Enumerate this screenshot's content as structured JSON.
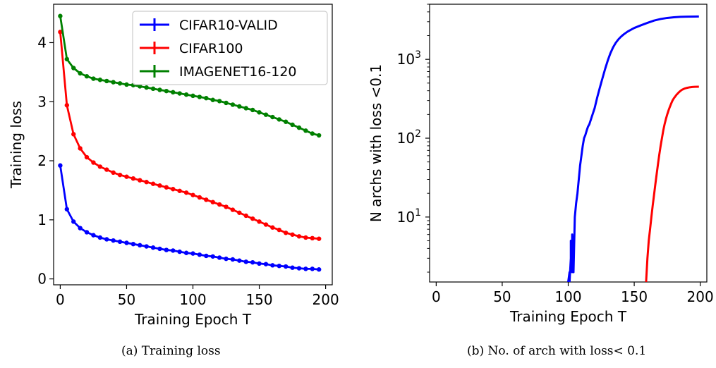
{
  "captions": {
    "a": "(a) Training loss",
    "b": "(b) No. of arch with loss< 0.1"
  },
  "chart_data": [
    {
      "type": "line",
      "title": "",
      "xlabel": "Training Epoch T",
      "ylabel": "Training loss",
      "xlim": [
        -5,
        205
      ],
      "ylim": [
        -0.1,
        4.65
      ],
      "xticks": [
        0,
        50,
        100,
        150,
        200
      ],
      "yticks": [
        0,
        1,
        2,
        3,
        4
      ],
      "grid": false,
      "legend_position": "top-right",
      "x": [
        0,
        5,
        10,
        15,
        20,
        25,
        30,
        35,
        40,
        45,
        50,
        55,
        60,
        65,
        70,
        75,
        80,
        85,
        90,
        95,
        100,
        105,
        110,
        115,
        120,
        125,
        130,
        135,
        140,
        145,
        150,
        155,
        160,
        165,
        170,
        175,
        180,
        185,
        190,
        195
      ],
      "series": [
        {
          "name": "CIFAR10-VALID",
          "color": "#0000ff",
          "values": [
            1.92,
            1.18,
            0.97,
            0.86,
            0.79,
            0.74,
            0.7,
            0.67,
            0.65,
            0.63,
            0.61,
            0.59,
            0.57,
            0.55,
            0.53,
            0.51,
            0.49,
            0.48,
            0.46,
            0.44,
            0.43,
            0.41,
            0.39,
            0.38,
            0.36,
            0.34,
            0.33,
            0.31,
            0.29,
            0.28,
            0.26,
            0.25,
            0.23,
            0.22,
            0.21,
            0.19,
            0.18,
            0.17,
            0.17,
            0.16
          ]
        },
        {
          "name": "CIFAR100",
          "color": "#ff0000",
          "values": [
            4.18,
            2.94,
            2.45,
            2.21,
            2.06,
            1.97,
            1.9,
            1.85,
            1.8,
            1.76,
            1.73,
            1.7,
            1.67,
            1.64,
            1.61,
            1.58,
            1.55,
            1.52,
            1.49,
            1.46,
            1.42,
            1.38,
            1.34,
            1.3,
            1.26,
            1.22,
            1.17,
            1.12,
            1.07,
            1.02,
            0.97,
            0.92,
            0.87,
            0.83,
            0.78,
            0.75,
            0.72,
            0.7,
            0.69,
            0.68
          ]
        },
        {
          "name": "IMAGENET16-120",
          "color": "#008000",
          "values": [
            4.45,
            3.72,
            3.57,
            3.48,
            3.43,
            3.39,
            3.37,
            3.35,
            3.33,
            3.31,
            3.29,
            3.28,
            3.26,
            3.24,
            3.22,
            3.2,
            3.18,
            3.16,
            3.14,
            3.12,
            3.1,
            3.08,
            3.06,
            3.03,
            3.01,
            2.98,
            2.95,
            2.92,
            2.89,
            2.86,
            2.82,
            2.78,
            2.74,
            2.7,
            2.66,
            2.61,
            2.56,
            2.51,
            2.46,
            2.43
          ]
        }
      ]
    },
    {
      "type": "line",
      "title": "",
      "xlabel": "Training Epoch T",
      "ylabel": "N archs with loss <0.1",
      "xlim": [
        -5,
        205
      ],
      "ylim": [
        1.5,
        5000
      ],
      "yscale": "log",
      "xticks": [
        0,
        50,
        100,
        150,
        200
      ],
      "yticks": [
        10,
        100,
        1000
      ],
      "ytick_labels": [
        {
          "base": "10",
          "exp": "1"
        },
        {
          "base": "10",
          "exp": "2"
        },
        {
          "base": "10",
          "exp": "3"
        }
      ],
      "grid": false,
      "series": [
        {
          "color": "#0000ff",
          "x": [
            100,
            101,
            101,
            102,
            102,
            103,
            103,
            104,
            105,
            106,
            107,
            108,
            109,
            110,
            111,
            112,
            113,
            114,
            115,
            116,
            118,
            120,
            122,
            124,
            126,
            128,
            130,
            132,
            134,
            136,
            138,
            140,
            142,
            145,
            148,
            150,
            155,
            160,
            165,
            170,
            175,
            180,
            185,
            190,
            195,
            199
          ],
          "values": [
            1.5,
            2,
            1.5,
            3,
            5,
            2,
            6,
            2,
            10,
            15,
            20,
            30,
            45,
            60,
            80,
            100,
            110,
            125,
            140,
            150,
            190,
            240,
            330,
            440,
            580,
            760,
            970,
            1200,
            1420,
            1620,
            1790,
            1940,
            2070,
            2250,
            2400,
            2500,
            2700,
            2900,
            3100,
            3250,
            3350,
            3420,
            3460,
            3480,
            3490,
            3500
          ]
        },
        {
          "color": "#ff0000",
          "x": [
            159,
            160,
            161,
            162,
            163,
            164,
            165,
            166,
            167,
            168,
            169,
            170,
            171,
            172,
            173,
            174,
            175,
            176,
            177,
            178,
            179,
            180,
            182,
            184,
            186,
            188,
            190,
            192,
            194,
            196,
            199
          ],
          "values": [
            1.5,
            3,
            5,
            7,
            10,
            14,
            19,
            26,
            35,
            47,
            62,
            80,
            100,
            125,
            150,
            175,
            200,
            225,
            250,
            275,
            300,
            320,
            355,
            385,
            410,
            425,
            435,
            442,
            446,
            449,
            450
          ]
        }
      ]
    }
  ]
}
